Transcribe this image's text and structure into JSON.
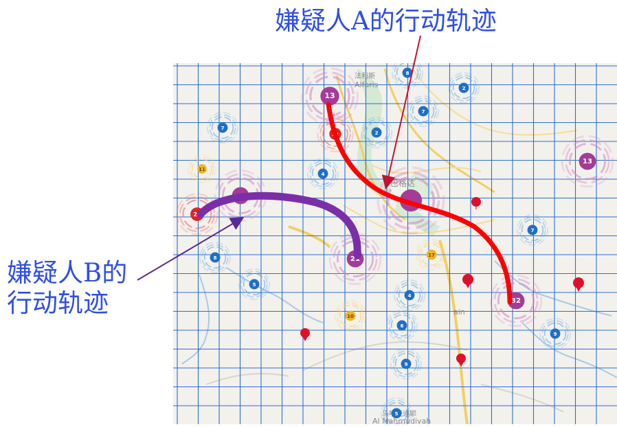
{
  "annotations": {
    "suspect_a_title": "嫌疑人A的行动轨迹",
    "suspect_b_line1": "嫌疑人B的",
    "suspect_b_line2": "行动轨迹"
  },
  "map_labels": {
    "alfaris_cn": "法利斯",
    "alfaris_en": "Alfaris",
    "center_cn": "巴格达",
    "ain_en": "ain",
    "al_mahmudiyah_cn": "马哈茂迪耶",
    "al_mahmudiyah_en": "Al Mahmudiyah"
  },
  "clusters": [
    {
      "label": "13",
      "color": "purple"
    },
    {
      "label": "8",
      "color": "blue"
    },
    {
      "label": "2",
      "color": "blue"
    },
    {
      "label": "7",
      "color": "blue"
    },
    {
      "label": "2",
      "color": "blue"
    },
    {
      "label": "23",
      "color": "red"
    },
    {
      "label": "7",
      "color": "blue"
    },
    {
      "label": "13",
      "color": "purple"
    },
    {
      "label": "11",
      "color": "yellow"
    },
    {
      "label": "4",
      "color": "blue"
    },
    {
      "label": "24",
      "color": "red"
    },
    {
      "label": "",
      "color": "purple"
    },
    {
      "label": "",
      "color": "purple"
    },
    {
      "label": "7",
      "color": "blue"
    },
    {
      "label": "21",
      "color": "purple"
    },
    {
      "label": "17",
      "color": "yellow"
    },
    {
      "label": "8",
      "color": "blue"
    },
    {
      "label": "5",
      "color": "blue"
    },
    {
      "label": "4",
      "color": "blue"
    },
    {
      "label": "10",
      "color": "yellow"
    },
    {
      "label": "6",
      "color": "blue"
    },
    {
      "label": "32",
      "color": "purple"
    },
    {
      "label": "9",
      "color": "blue"
    },
    {
      "label": "9",
      "color": "blue"
    },
    {
      "label": "5",
      "color": "blue"
    }
  ],
  "colors": {
    "annotation_text": "#2f4fe6",
    "suspect_a_path": "#ff0000",
    "suspect_b_path": "#7a2fa8",
    "grid": "#2a6fd6",
    "map_bg": "#f3f1ec"
  }
}
